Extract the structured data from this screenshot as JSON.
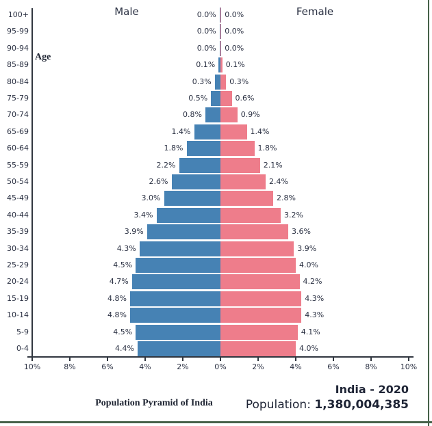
{
  "header": {
    "male": "Male",
    "female": "Female",
    "age_label": "Age"
  },
  "footer": {
    "caption": "Population Pyramid of India",
    "country_year": "India - 2020",
    "population_label": "Population: ",
    "population_value": "1,380,004,385"
  },
  "colors": {
    "male_bar": "#4682B4",
    "female_bar": "#EE7D8B",
    "axis": "#30363f",
    "text": "#2a3042",
    "window_border": "#466149"
  },
  "chart_data": {
    "type": "bar",
    "subtype": "population-pyramid",
    "title": "Population Pyramid of India",
    "categories": [
      "100+",
      "95-99",
      "90-94",
      "85-89",
      "80-84",
      "75-79",
      "70-74",
      "65-69",
      "60-64",
      "55-59",
      "50-54",
      "45-49",
      "40-44",
      "35-39",
      "30-34",
      "25-29",
      "20-24",
      "15-19",
      "10-14",
      "5-9",
      "0-4"
    ],
    "series": [
      {
        "name": "Male",
        "values": [
          0.0,
          0.0,
          0.0,
          0.1,
          0.3,
          0.5,
          0.8,
          1.4,
          1.8,
          2.2,
          2.6,
          3.0,
          3.4,
          3.9,
          4.3,
          4.5,
          4.7,
          4.8,
          4.8,
          4.5,
          4.4
        ]
      },
      {
        "name": "Female",
        "values": [
          0.0,
          0.0,
          0.0,
          0.1,
          0.3,
          0.6,
          0.9,
          1.4,
          1.8,
          2.1,
          2.4,
          2.8,
          3.2,
          3.6,
          3.9,
          4.0,
          4.2,
          4.3,
          4.3,
          4.1,
          4.0
        ]
      }
    ],
    "unit": "%",
    "x_tick_labels": [
      "10%",
      "8%",
      "6%",
      "4%",
      "2%",
      "0%",
      "2%",
      "4%",
      "6%",
      "8%",
      "10%"
    ],
    "xlim": [
      -10,
      10
    ],
    "ylabel": "Age",
    "grid": false,
    "legend_position": "column-headers-top"
  }
}
